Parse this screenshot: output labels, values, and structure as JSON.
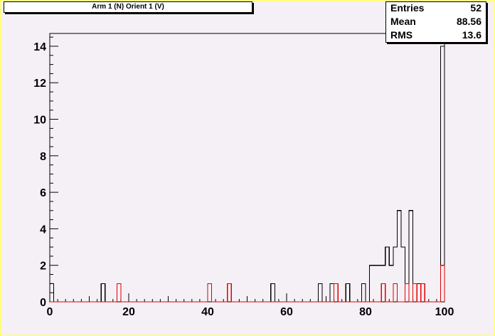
{
  "title": "Arm 1 (N) Orient 1 (V)",
  "stats": [
    {
      "label": "Entries",
      "value": "52"
    },
    {
      "label": "Mean",
      "value": "88.56"
    },
    {
      "label": "RMS",
      "value": "13.6"
    }
  ],
  "colors": {
    "frame": "#ffff80",
    "pad": "#f5f0f5",
    "series_black": "#000000",
    "series_red": "#e00000"
  },
  "chart_data": {
    "type": "step-histogram",
    "xlim": [
      0,
      100
    ],
    "ylim": [
      0,
      14.7
    ],
    "x_ticks": [
      0,
      20,
      40,
      60,
      80,
      100
    ],
    "y_ticks": [
      0,
      2,
      4,
      6,
      8,
      10,
      12,
      14
    ],
    "bin_width": 1,
    "series": [
      {
        "color": "#000000",
        "bins": [
          [
            0,
            1
          ],
          [
            13,
            1
          ],
          [
            56,
            1
          ],
          [
            68,
            1
          ],
          [
            71,
            1
          ],
          [
            75,
            1
          ],
          [
            79,
            1
          ],
          [
            81,
            2
          ],
          [
            82,
            2
          ],
          [
            83,
            2
          ],
          [
            84,
            2
          ],
          [
            85,
            3
          ],
          [
            86,
            2
          ],
          [
            87,
            3
          ],
          [
            88,
            5
          ],
          [
            89,
            3
          ],
          [
            90,
            1
          ],
          [
            91,
            5
          ],
          [
            92,
            1
          ],
          [
            93,
            1
          ],
          [
            94,
            1
          ],
          [
            99,
            14
          ],
          [
            100,
            1
          ]
        ]
      },
      {
        "color": "#e00000",
        "bins": [
          [
            17,
            1
          ],
          [
            40,
            1
          ],
          [
            45,
            1
          ],
          [
            72,
            1
          ],
          [
            84,
            1
          ],
          [
            87,
            1
          ],
          [
            90,
            1
          ],
          [
            92,
            1
          ],
          [
            94,
            1
          ],
          [
            99,
            2
          ]
        ]
      }
    ]
  }
}
